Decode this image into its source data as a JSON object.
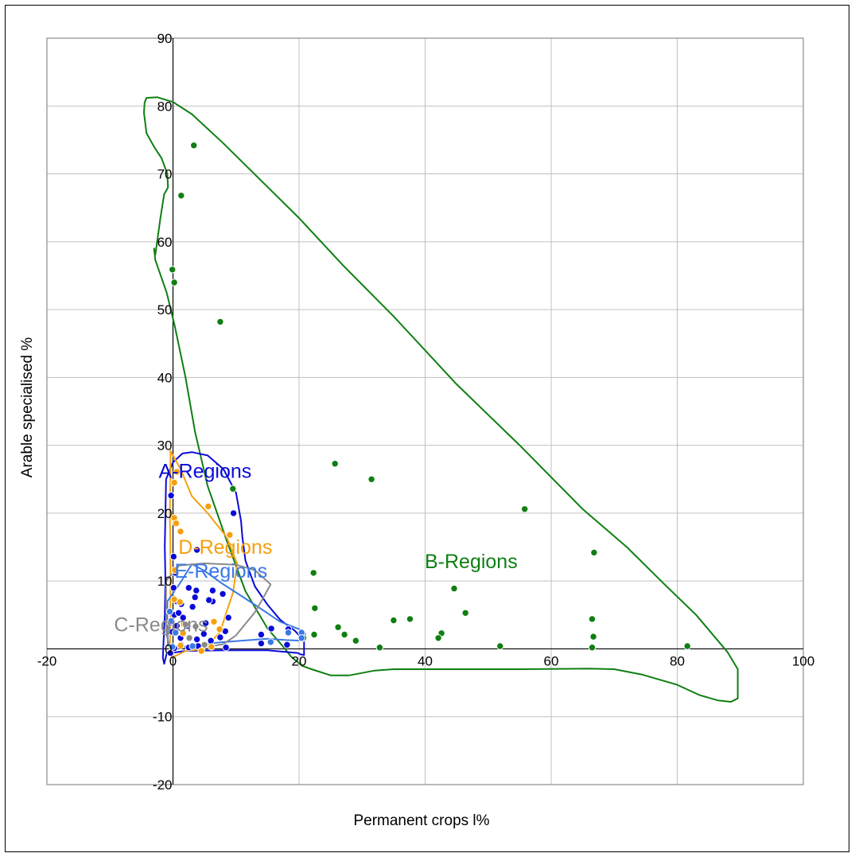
{
  "chart_data": {
    "type": "scatter",
    "title": "",
    "xlabel": "Permanent crops  l%",
    "ylabel": "Arable specialised %",
    "xlim": [
      -20,
      100
    ],
    "ylim": [
      -20,
      90
    ],
    "xticks": [
      -20,
      0,
      20,
      40,
      60,
      80,
      100
    ],
    "yticks": [
      -20,
      -10,
      0,
      10,
      20,
      30,
      40,
      50,
      60,
      70,
      80,
      90
    ],
    "grid": true,
    "series": [
      {
        "name": "B-Regions",
        "color": "#0f7f12",
        "points": [
          [
            3.3,
            74.2
          ],
          [
            1.3,
            66.8
          ],
          [
            -0.1,
            55.9
          ],
          [
            0.2,
            54
          ],
          [
            7.5,
            48.2
          ],
          [
            9.5,
            23.6
          ],
          [
            25.7,
            27.3
          ],
          [
            31.5,
            25
          ],
          [
            55.8,
            20.6
          ],
          [
            66.8,
            14.2
          ],
          [
            22.3,
            11.2
          ],
          [
            44.6,
            8.9
          ],
          [
            22.5,
            6
          ],
          [
            46.4,
            5.3
          ],
          [
            37.6,
            4.4
          ],
          [
            35,
            4.2
          ],
          [
            66.5,
            4.4
          ],
          [
            26.2,
            3.2
          ],
          [
            22.4,
            2.1
          ],
          [
            27.2,
            2.1
          ],
          [
            42.6,
            2.3
          ],
          [
            42.1,
            1.6
          ],
          [
            29,
            1.2
          ],
          [
            66.7,
            1.8
          ],
          [
            20.7,
            1.6
          ],
          [
            32.8,
            0.2
          ],
          [
            51.9,
            0.4
          ],
          [
            66.5,
            0.2
          ],
          [
            81.6,
            0.4
          ]
        ],
        "hull": [
          [
            -4.5,
            80.5
          ],
          [
            -4.2,
            81.2
          ],
          [
            -2.5,
            81.3
          ],
          [
            0,
            80.6
          ],
          [
            3,
            78.8
          ],
          [
            8,
            74.5
          ],
          [
            14,
            69
          ],
          [
            20,
            63.5
          ],
          [
            27,
            56.5
          ],
          [
            35,
            49
          ],
          [
            45,
            39
          ],
          [
            55,
            30
          ],
          [
            65,
            20.6
          ],
          [
            72,
            15
          ],
          [
            78,
            9.5
          ],
          [
            83,
            5
          ],
          [
            88,
            -0.5
          ],
          [
            89.6,
            -3
          ],
          [
            89.6,
            -7.3
          ],
          [
            88.5,
            -7.8
          ],
          [
            86.5,
            -7.6
          ],
          [
            83.5,
            -6.8
          ],
          [
            80,
            -5.3
          ],
          [
            74.5,
            -3.8
          ],
          [
            70,
            -3
          ],
          [
            66,
            -2.9
          ],
          [
            55,
            -3
          ],
          [
            45,
            -3
          ],
          [
            35,
            -3
          ],
          [
            32,
            -3.2
          ],
          [
            28,
            -3.9
          ],
          [
            25,
            -3.9
          ],
          [
            22,
            -3
          ],
          [
            20.5,
            -2.5
          ],
          [
            18.8,
            -1.2
          ],
          [
            17.5,
            0.3
          ],
          [
            15,
            3
          ],
          [
            11.5,
            8.5
          ],
          [
            8.5,
            16
          ],
          [
            5.5,
            24
          ],
          [
            3.5,
            32
          ],
          [
            2,
            40
          ],
          [
            0.3,
            47.5
          ],
          [
            -1,
            52.5
          ],
          [
            -2.8,
            57.3
          ],
          [
            -3,
            59
          ],
          [
            -2.8,
            58.1
          ],
          [
            -2,
            63.5
          ],
          [
            -1.4,
            67
          ],
          [
            -0.8,
            68
          ],
          [
            -0.9,
            70
          ],
          [
            -1.8,
            72.3
          ],
          [
            -3,
            74
          ],
          [
            -4.2,
            76
          ],
          [
            -4.6,
            79
          ]
        ]
      },
      {
        "name": "A-Regions",
        "color": "#0a0ad8",
        "points": [
          [
            -0.3,
            22.6
          ],
          [
            0.1,
            13.6
          ],
          [
            0.4,
            11.2
          ],
          [
            3.8,
            14.6
          ],
          [
            9.6,
            20
          ],
          [
            0.1,
            9
          ],
          [
            2.5,
            9
          ],
          [
            3.7,
            8.6
          ],
          [
            6.3,
            8.6
          ],
          [
            7.9,
            8.1
          ],
          [
            3.5,
            7.6
          ],
          [
            0.6,
            7
          ],
          [
            1.3,
            6.6
          ],
          [
            6.3,
            7
          ],
          [
            5.7,
            7.2
          ],
          [
            3.1,
            6.2
          ],
          [
            0.2,
            5
          ],
          [
            0.9,
            5.3
          ],
          [
            8.8,
            4.6
          ],
          [
            1.6,
            4.6
          ],
          [
            -0.4,
            3.9
          ],
          [
            0.6,
            3.4
          ],
          [
            2.3,
            3.4
          ],
          [
            5.2,
            3.8
          ],
          [
            -0.1,
            2.5
          ],
          [
            1.2,
            1.6
          ],
          [
            3.8,
            1.4
          ],
          [
            7.5,
            1.7
          ],
          [
            6,
            1.2
          ],
          [
            4.9,
            2.2
          ],
          [
            8.3,
            2.6
          ],
          [
            14,
            2.1
          ],
          [
            15.6,
            3
          ],
          [
            18.3,
            2.9
          ],
          [
            18.1,
            0.6
          ],
          [
            14,
            0.8
          ],
          [
            4,
            0.4
          ],
          [
            1.3,
            0.6
          ],
          [
            2.5,
            0.2
          ],
          [
            -0.4,
            -0.6
          ],
          [
            8.4,
            0.2
          ],
          [
            0.2,
            0.1
          ]
        ],
        "hull": [
          [
            -1.1,
            25
          ],
          [
            0,
            27.5
          ],
          [
            1.5,
            28.8
          ],
          [
            3,
            29
          ],
          [
            5.5,
            28.5
          ],
          [
            8,
            26.5
          ],
          [
            10,
            23
          ],
          [
            10.8,
            18.8
          ],
          [
            11,
            16.5
          ],
          [
            11.5,
            13
          ],
          [
            13,
            9.2
          ],
          [
            15,
            6.5
          ],
          [
            17,
            4.3
          ],
          [
            19.3,
            2.7
          ],
          [
            20.8,
            1.2
          ],
          [
            20.8,
            -0.9
          ],
          [
            20.2,
            -0.8
          ],
          [
            19.8,
            -0.6
          ],
          [
            15,
            -0.2
          ],
          [
            8,
            -0.2
          ],
          [
            2,
            -0.3
          ],
          [
            -1,
            -0.7
          ],
          [
            -1.4,
            -2.2
          ],
          [
            -1.6,
            -1.3
          ],
          [
            -1.5,
            1
          ],
          [
            -1.3,
            5
          ],
          [
            -1.2,
            10
          ],
          [
            -1.3,
            15
          ],
          [
            -1.2,
            20
          ],
          [
            -1.1,
            25
          ]
        ]
      },
      {
        "name": "D-Regions",
        "color": "#f5a010",
        "points": [
          [
            0.2,
            24.5
          ],
          [
            0.6,
            26.1
          ],
          [
            0.2,
            19.3
          ],
          [
            0.5,
            18.5
          ],
          [
            1.2,
            17.3
          ],
          [
            5.6,
            21
          ],
          [
            9,
            16.8
          ],
          [
            0.3,
            11.6
          ],
          [
            0.2,
            7.3
          ],
          [
            1.1,
            6.9
          ],
          [
            1.7,
            3.6
          ],
          [
            1.6,
            2.3
          ],
          [
            6.5,
            4
          ],
          [
            7.4,
            2.9
          ],
          [
            6.1,
            0.3
          ],
          [
            1.2,
            0.5
          ],
          [
            4.5,
            -0.3
          ]
        ],
        "hull": [
          [
            -0.4,
            29.2
          ],
          [
            1.2,
            26.5
          ],
          [
            3,
            22.5
          ],
          [
            5.5,
            20
          ],
          [
            8.5,
            16.5
          ],
          [
            10.2,
            12.5
          ],
          [
            9.5,
            8.2
          ],
          [
            8.5,
            5.5
          ],
          [
            7.5,
            2.5
          ],
          [
            5,
            0
          ],
          [
            2,
            -0.3
          ],
          [
            0.5,
            -1
          ],
          [
            -0.2,
            -1.2
          ],
          [
            -0.5,
            0
          ],
          [
            -0.4,
            5
          ],
          [
            -0.4,
            10
          ],
          [
            -0.4,
            15
          ],
          [
            -0.5,
            20
          ],
          [
            -0.4,
            25
          ],
          [
            -0.4,
            29.2
          ]
        ]
      },
      {
        "name": "E-Regions",
        "color": "#3a78e6",
        "points": [
          [
            -0.5,
            5.5
          ],
          [
            -0.3,
            4.1
          ],
          [
            0.4,
            2.4
          ],
          [
            3.1,
            0.4
          ],
          [
            15.5,
            1
          ],
          [
            18.3,
            2.4
          ],
          [
            20.4,
            2.4
          ],
          [
            20.4,
            1.6
          ],
          [
            -0.1,
            0.3
          ]
        ],
        "hull": [
          [
            -0.9,
            7
          ],
          [
            1,
            9.5
          ],
          [
            3,
            12.5
          ],
          [
            5,
            11.5
          ],
          [
            8,
            9.5
          ],
          [
            13,
            6.5
          ],
          [
            17,
            4
          ],
          [
            20,
            2.9
          ],
          [
            21,
            2.2
          ],
          [
            20.8,
            1.2
          ],
          [
            18,
            1.3
          ],
          [
            15,
            1.5
          ],
          [
            8,
            1
          ],
          [
            2.5,
            0.5
          ],
          [
            0,
            0
          ],
          [
            -0.8,
            0.5
          ],
          [
            -0.9,
            3
          ],
          [
            -0.9,
            7
          ]
        ]
      },
      {
        "name": "C-Regions",
        "color": "#8a8a8a",
        "points": [
          [
            3.6,
            3.3
          ],
          [
            2,
            3.6
          ],
          [
            2.6,
            1.6
          ],
          [
            5,
            0.6
          ]
        ],
        "hull": [
          [
            -1.1,
            10
          ],
          [
            1,
            12.3
          ],
          [
            5,
            12.6
          ],
          [
            10,
            12.4
          ],
          [
            13,
            11.6
          ],
          [
            15.5,
            9.5
          ],
          [
            14,
            7
          ],
          [
            13,
            5.4
          ],
          [
            10,
            2
          ],
          [
            8,
            0.7
          ],
          [
            5,
            0.2
          ],
          [
            1,
            0.2
          ],
          [
            -0.5,
            0.3
          ],
          [
            -1,
            2
          ],
          [
            -1.1,
            5
          ],
          [
            -1.1,
            10
          ]
        ]
      }
    ],
    "annotations": [
      {
        "text": "A-Regions",
        "x": 5.1,
        "y": 25.2,
        "color": "#0a0ad8"
      },
      {
        "text": "D-Regions",
        "x": 8.3,
        "y": 14.0,
        "color": "#f5a010"
      },
      {
        "text": "E-Regions",
        "x": 7.6,
        "y": 10.5,
        "color": "#3a78e6"
      },
      {
        "text": "B-Regions",
        "x": 47.3,
        "y": 11.9,
        "color": "#0f7f12"
      },
      {
        "text": "C-Regions",
        "x": -1.9,
        "y": 2.6,
        "color": "#8a8a8a"
      }
    ],
    "gridColor": "#c0c0c0",
    "plotBorderColor": "#8c8c8c"
  }
}
